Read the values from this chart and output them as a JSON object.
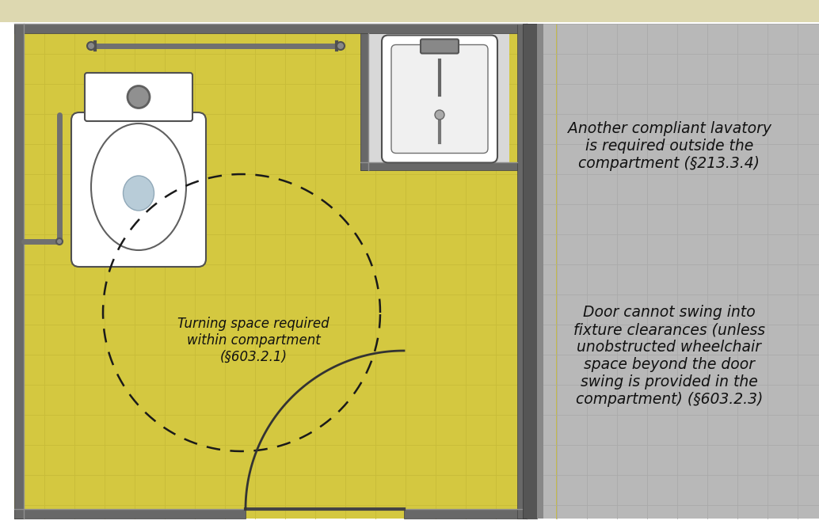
{
  "bg_outer": "#b0b0b0",
  "header_color": "#ddd8b0",
  "yellow_floor": "#d4c840",
  "gray_floor": "#b8b8b8",
  "wall_color": "#606060",
  "wall_dark": "#505050",
  "wall_light": "#909090",
  "tile_yellow": "#c8bc38",
  "tile_gray": "#aaaaaa",
  "dashed_color": "#1a1a1a",
  "door_arc_color": "#333333",
  "text_color": "#111111",
  "grab_bar_color": "#606060",
  "note1": "Another compliant lavatory\nis required outside the\ncompartment (§213.3.4)",
  "note2": "Door cannot swing into\nfixture clearances (unless\nunobstructed wheelchair\nspace beyond the door\nswing is provided in the\ncompartment) (§603.2.3)",
  "note3": "Turning space required\nwithin compartment\n(§603.2.1)",
  "font_size_notes": 13.5,
  "font_size_note3": 12.0
}
